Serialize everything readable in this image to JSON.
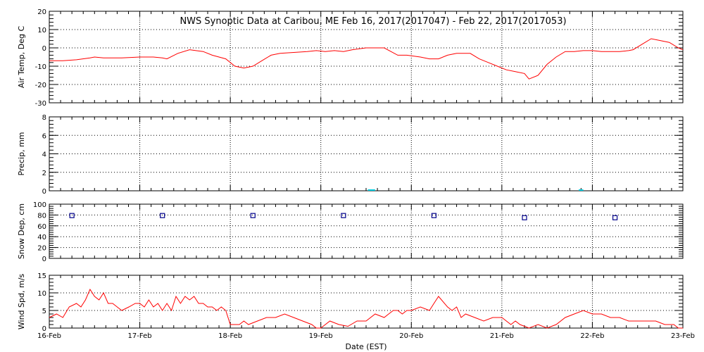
{
  "title": "NWS Synoptic Data at Caribou, ME   Feb 16, 2017(2017047) - Feb 22, 2017(2017053)",
  "xlabel": "Date (EST)",
  "x_ticks": [
    "16-Feb",
    "17-Feb",
    "18-Feb",
    "19-Feb",
    "20-Feb",
    "21-Feb",
    "22-Feb",
    "23-Feb"
  ],
  "colors": {
    "line": "#ff0000",
    "precip": "#00c8dc",
    "snow": "#00008b",
    "grid": "#000000"
  },
  "chart_data": [
    {
      "type": "line",
      "ylabel": "Air Temp, Deg C",
      "ylim": [
        -30,
        20
      ],
      "y_ticks": [
        20,
        10,
        0,
        -10,
        -20,
        -30
      ],
      "x_range_days": [
        0,
        7
      ],
      "series": [
        {
          "x": [
            0,
            0.15,
            0.3,
            0.45,
            0.5,
            0.6,
            0.8,
            1.0,
            1.15,
            1.25,
            1.3,
            1.42,
            1.55,
            1.7,
            1.8,
            1.95,
            2.05,
            2.15,
            2.25,
            2.35,
            2.45,
            2.55,
            2.7,
            2.85,
            2.95,
            3.05,
            3.15,
            3.25,
            3.35,
            3.5,
            3.6,
            3.7,
            3.85,
            3.95,
            4.1,
            4.2,
            4.3,
            4.4,
            4.5,
            4.65,
            4.75,
            4.85,
            4.95,
            5.05,
            5.15,
            5.25,
            5.3,
            5.4,
            5.5,
            5.6,
            5.7,
            5.8,
            5.9,
            6.0,
            6.1,
            6.2,
            6.3,
            6.4,
            6.45,
            6.55,
            6.65,
            6.75,
            6.85,
            6.95,
            7.0
          ],
          "y": [
            -7,
            -7,
            -6.5,
            -5.5,
            -5,
            -5.5,
            -5.5,
            -5,
            -5,
            -5.5,
            -6,
            -3,
            -1,
            -2,
            -4,
            -6,
            -10,
            -11,
            -10,
            -7,
            -4,
            -3,
            -2.5,
            -2,
            -1.5,
            -2,
            -1.5,
            -2,
            -1,
            0,
            0,
            0,
            -4,
            -4,
            -5,
            -6,
            -6,
            -4,
            -3,
            -3,
            -6,
            -8,
            -10,
            -12,
            -13,
            -14,
            -17,
            -15,
            -9,
            -5,
            -2,
            -2,
            -1.5,
            -1.5,
            -2,
            -2,
            -2,
            -1.5,
            -1,
            2,
            5,
            4,
            3,
            0,
            -1
          ]
        }
      ]
    },
    {
      "type": "bar",
      "ylabel": "Precip, mm",
      "ylim": [
        0,
        8
      ],
      "y_ticks": [
        8,
        6,
        4,
        2,
        0
      ],
      "x_range_days": [
        0,
        7
      ],
      "values": [
        {
          "x_start": 3.52,
          "x_end": 3.6,
          "value": 0.05
        },
        {
          "x_start": 5.85,
          "x_end": 5.9,
          "value": 0.05
        }
      ]
    },
    {
      "type": "scatter",
      "ylabel": "Snow Dep, cm",
      "ylim": [
        0,
        100
      ],
      "y_ticks": [
        100,
        80,
        60,
        40,
        20,
        0
      ],
      "x_range_days": [
        0,
        7
      ],
      "series": [
        {
          "x": [
            0.25,
            1.25,
            2.25,
            3.25,
            4.25,
            5.25,
            6.25
          ],
          "y": [
            79,
            79,
            79,
            79,
            79,
            75,
            75
          ]
        }
      ]
    },
    {
      "type": "line",
      "ylabel": "Wind Spd, m/s",
      "ylim": [
        0,
        15
      ],
      "y_ticks": [
        15,
        10,
        5,
        0
      ],
      "x_range_days": [
        0,
        7
      ],
      "series": [
        {
          "x": [
            0,
            0.08,
            0.15,
            0.22,
            0.3,
            0.35,
            0.4,
            0.45,
            0.5,
            0.55,
            0.6,
            0.65,
            0.7,
            0.75,
            0.8,
            0.88,
            0.95,
            1.0,
            1.05,
            1.1,
            1.15,
            1.2,
            1.25,
            1.3,
            1.35,
            1.4,
            1.45,
            1.5,
            1.55,
            1.6,
            1.65,
            1.7,
            1.75,
            1.8,
            1.85,
            1.9,
            1.95,
            2.0,
            2.1,
            2.15,
            2.2,
            2.3,
            2.4,
            2.5,
            2.6,
            2.7,
            2.8,
            2.9,
            2.95,
            3.0,
            3.1,
            3.2,
            3.3,
            3.4,
            3.5,
            3.6,
            3.7,
            3.75,
            3.8,
            3.85,
            3.9,
            3.95,
            4.0,
            4.1,
            4.2,
            4.25,
            4.3,
            4.4,
            4.45,
            4.5,
            4.55,
            4.6,
            4.7,
            4.8,
            4.9,
            5.0,
            5.05,
            5.1,
            5.15,
            5.2,
            5.3,
            5.4,
            5.5,
            5.6,
            5.7,
            5.8,
            5.9,
            6.0,
            6.1,
            6.2,
            6.3,
            6.4,
            6.5,
            6.6,
            6.7,
            6.8,
            6.9,
            6.95,
            7.0
          ],
          "y": [
            3,
            4,
            3,
            6,
            7,
            6,
            8,
            11,
            9,
            8,
            10,
            7,
            7,
            6,
            5,
            6,
            7,
            7,
            6,
            8,
            6,
            7,
            5,
            7,
            5,
            9,
            7,
            9,
            8,
            9,
            7,
            7,
            6,
            6,
            5,
            6,
            5,
            1,
            1,
            2,
            1,
            2,
            3,
            3,
            4,
            3,
            2,
            1,
            0,
            0,
            2,
            1,
            0.5,
            2,
            2,
            4,
            3,
            4,
            5,
            5,
            4,
            5,
            5,
            6,
            5,
            7,
            9,
            6,
            5,
            6,
            3,
            4,
            3,
            2,
            3,
            3,
            2,
            1,
            2,
            1,
            0,
            1,
            0,
            1,
            3,
            4,
            5,
            4,
            4,
            3,
            3,
            2,
            2,
            2,
            2,
            1,
            1,
            0,
            0
          ]
        }
      ]
    }
  ]
}
